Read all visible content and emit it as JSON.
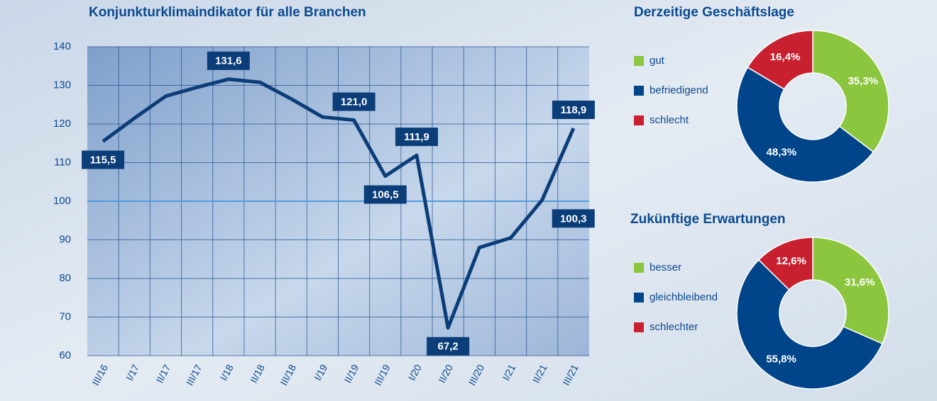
{
  "chart_data": [
    {
      "type": "line",
      "title": "Konjunkturklimaindikator für alle Branchen",
      "categories": [
        "III/16",
        "I/17",
        "II/17",
        "III/17",
        "I/18",
        "II/18",
        "III/18",
        "I/19",
        "II/19",
        "III/19",
        "I/20",
        "II/20",
        "III/20",
        "I/21",
        "II/21",
        "III/21"
      ],
      "series": [
        {
          "name": "Konjunkturklimaindikator",
          "color": "#0b3d78",
          "values": [
            115.5,
            121.5,
            127.2,
            129.5,
            131.6,
            130.8,
            126.5,
            121.8,
            121.0,
            106.5,
            111.9,
            67.2,
            88.0,
            90.5,
            100.3,
            118.9
          ],
          "value_labels": [
            "115,5",
            null,
            null,
            null,
            "131,6",
            null,
            null,
            null,
            "121,0",
            "106,5",
            "111,9",
            "67,2",
            null,
            null,
            "100,3",
            "118,9"
          ]
        }
      ],
      "ylim": [
        60,
        140
      ],
      "yticks": [
        60,
        70,
        80,
        90,
        100,
        110,
        120,
        130,
        140
      ],
      "reference_line": 100,
      "grid": true
    },
    {
      "type": "pie",
      "title": "Derzeitige Geschäftslage",
      "categories": [
        "gut",
        "befriedigend",
        "schlecht"
      ],
      "values": [
        35.3,
        48.3,
        16.4
      ],
      "value_labels": [
        "35,3%",
        "48,3%",
        "16,4%"
      ],
      "colors": [
        "#8cc63f",
        "#004589",
        "#c8202f"
      ]
    },
    {
      "type": "pie",
      "title": "Zukünftige Erwartungen",
      "categories": [
        "besser",
        "gleichbleibend",
        "schlechter"
      ],
      "values": [
        31.6,
        55.8,
        12.6
      ],
      "value_labels": [
        "31,6%",
        "55,8%",
        "12,6%"
      ],
      "colors": [
        "#8cc63f",
        "#004589",
        "#c8202f"
      ]
    }
  ]
}
